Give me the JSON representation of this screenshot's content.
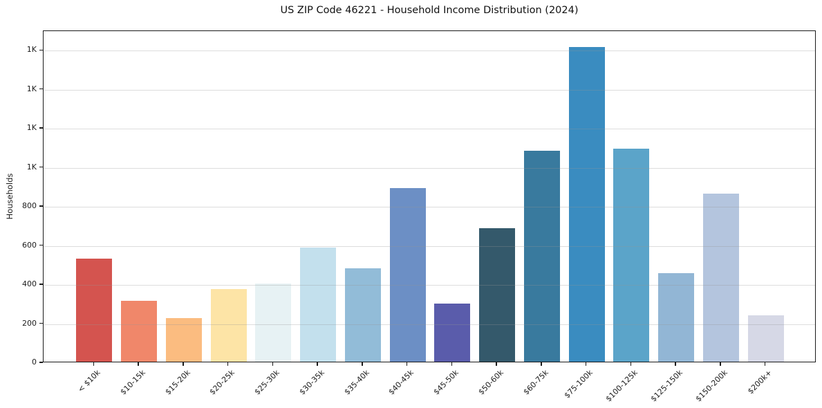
{
  "chart_data": {
    "type": "bar",
    "title": "US ZIP Code 46221 - Household Income Distribution (2024)",
    "xlabel": "",
    "ylabel": "Households",
    "categories": [
      "< $10k",
      "$10-15k",
      "$15-20k",
      "$20-25k",
      "$25-30k",
      "$30-35k",
      "$35-40k",
      "$40-45k",
      "$45-50k",
      "$50-60k",
      "$60-75k",
      "$75-100k",
      "$100-125k",
      "$125-150k",
      "$150-200k",
      "$200k+"
    ],
    "values": [
      527,
      311,
      222,
      371,
      400,
      583,
      477,
      889,
      298,
      683,
      1079,
      1612,
      1091,
      452,
      862,
      237
    ],
    "bar_colors": [
      "#d4544f",
      "#f0876a",
      "#fbbc80",
      "#fde4a6",
      "#e7f2f4",
      "#c3e0ed",
      "#92bcd8",
      "#6c8fc5",
      "#5a5cab",
      "#34596b",
      "#397a9e",
      "#3a8cc0",
      "#5ba4c9",
      "#92b6d5",
      "#b4c5de",
      "#d6d8e6"
    ],
    "ylim": [
      0,
      1700
    ],
    "yticks": [
      {
        "value": 0,
        "label": "0"
      },
      {
        "value": 200,
        "label": "200"
      },
      {
        "value": 400,
        "label": "400"
      },
      {
        "value": 600,
        "label": "600"
      },
      {
        "value": 800,
        "label": "800"
      },
      {
        "value": 1000,
        "label": "1K"
      },
      {
        "value": 1200,
        "label": "1K"
      },
      {
        "value": 1400,
        "label": "1K"
      },
      {
        "value": 1600,
        "label": "1K"
      }
    ],
    "grid": "horizontal",
    "legend": "none",
    "background_color": "#ffffff",
    "spine_color": "#1a1a1a"
  }
}
